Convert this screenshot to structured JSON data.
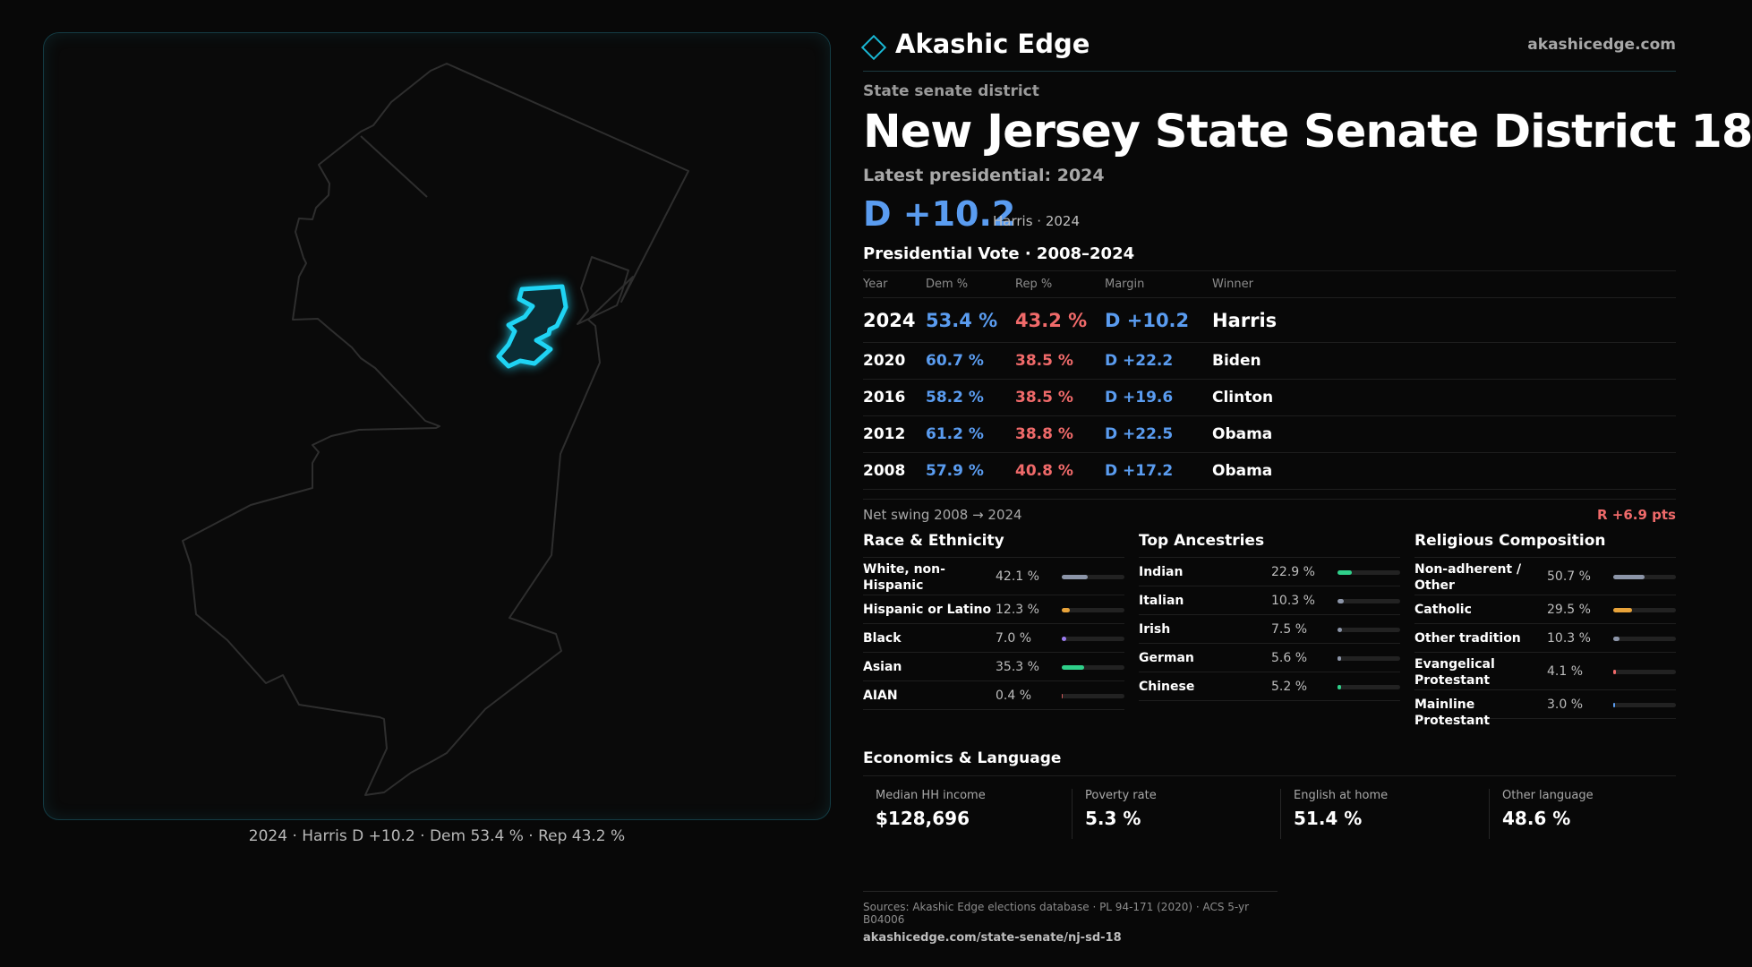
{
  "brand": {
    "name": "Akashic Edge",
    "url": "akashicedge.com"
  },
  "header": {
    "kicker": "State senate district",
    "title": "New Jersey State Senate District 18",
    "latest_label": "Latest presidential: 2024",
    "margin": "D +10.2",
    "margin_sub": "Harris · 2024"
  },
  "map": {
    "caption": "2024 · Harris D +10.2 · Dem 53.4 % · Rep 43.2 %",
    "state_outline_color": "#2e2e2e",
    "district_color": "#1fd4f4"
  },
  "presidential": {
    "title": "Presidential Vote · 2008–2024",
    "columns": [
      "Year",
      "Dem %",
      "Rep %",
      "Margin",
      "Winner"
    ],
    "rows": [
      {
        "year": "2024",
        "dem": "53.4 %",
        "rep": "43.2 %",
        "margin": "D +10.2",
        "winner": "Harris"
      },
      {
        "year": "2020",
        "dem": "60.7 %",
        "rep": "38.5 %",
        "margin": "D +22.2",
        "winner": "Biden"
      },
      {
        "year": "2016",
        "dem": "58.2 %",
        "rep": "38.5 %",
        "margin": "D +19.6",
        "winner": "Clinton"
      },
      {
        "year": "2012",
        "dem": "61.2 %",
        "rep": "38.8 %",
        "margin": "D +22.5",
        "winner": "Obama"
      },
      {
        "year": "2008",
        "dem": "57.9 %",
        "rep": "40.8 %",
        "margin": "D +17.2",
        "winner": "Obama"
      }
    ],
    "swing_label": "Net swing 2008 → 2024",
    "swing_value": "R +6.9 pts"
  },
  "race": {
    "title": "Race & Ethnicity",
    "items": [
      {
        "name": "White, non-Hispanic",
        "pct": "42.1 %",
        "value": 42.1,
        "color": "#8c95a8"
      },
      {
        "name": "Hispanic or Latino",
        "pct": "12.3 %",
        "value": 12.3,
        "color": "#e8a33a"
      },
      {
        "name": "Black",
        "pct": "7.0 %",
        "value": 7.0,
        "color": "#9b7cf0"
      },
      {
        "name": "Asian",
        "pct": "35.3 %",
        "value": 35.3,
        "color": "#2fd08a"
      },
      {
        "name": "AIAN",
        "pct": "0.4 %",
        "value": 0.4,
        "color": "#d05a5a"
      }
    ]
  },
  "ancestry": {
    "title": "Top Ancestries",
    "items": [
      {
        "name": "Indian",
        "pct": "22.9 %",
        "value": 22.9,
        "color": "#2fd08a"
      },
      {
        "name": "Italian",
        "pct": "10.3 %",
        "value": 10.3,
        "color": "#8c95a8"
      },
      {
        "name": "Irish",
        "pct": "7.5 %",
        "value": 7.5,
        "color": "#8c95a8"
      },
      {
        "name": "German",
        "pct": "5.6 %",
        "value": 5.6,
        "color": "#8c95a8"
      },
      {
        "name": "Chinese",
        "pct": "5.2 %",
        "value": 5.2,
        "color": "#2fd08a"
      }
    ]
  },
  "religion": {
    "title": "Religious Composition",
    "items": [
      {
        "name": "Non-adherent / Other",
        "pct": "50.7 %",
        "value": 50.7,
        "color": "#8c95a8"
      },
      {
        "name": "Catholic",
        "pct": "29.5 %",
        "value": 29.5,
        "color": "#e8a33a"
      },
      {
        "name": "Other tradition",
        "pct": "10.3 %",
        "value": 10.3,
        "color": "#8c95a8"
      },
      {
        "name": "Evangelical Protestant",
        "pct": "4.1 %",
        "value": 4.1,
        "color": "#f06a6a"
      },
      {
        "name": "Mainline Protestant",
        "pct": "3.0 %",
        "value": 3.0,
        "color": "#5a9cf0"
      }
    ]
  },
  "economics": {
    "title": "Economics & Language",
    "items": [
      {
        "label": "Median HH income",
        "value": "$128,696"
      },
      {
        "label": "Poverty rate",
        "value": "5.3 %"
      },
      {
        "label": "English at home",
        "value": "51.4 %"
      },
      {
        "label": "Other language",
        "value": "48.6 %"
      }
    ]
  },
  "sources": {
    "line": "Sources: Akashic Edge elections database · PL 94-171 (2020) · ACS 5-yr B04006",
    "url": "akashicedge.com/state-senate/nj-sd-18"
  }
}
